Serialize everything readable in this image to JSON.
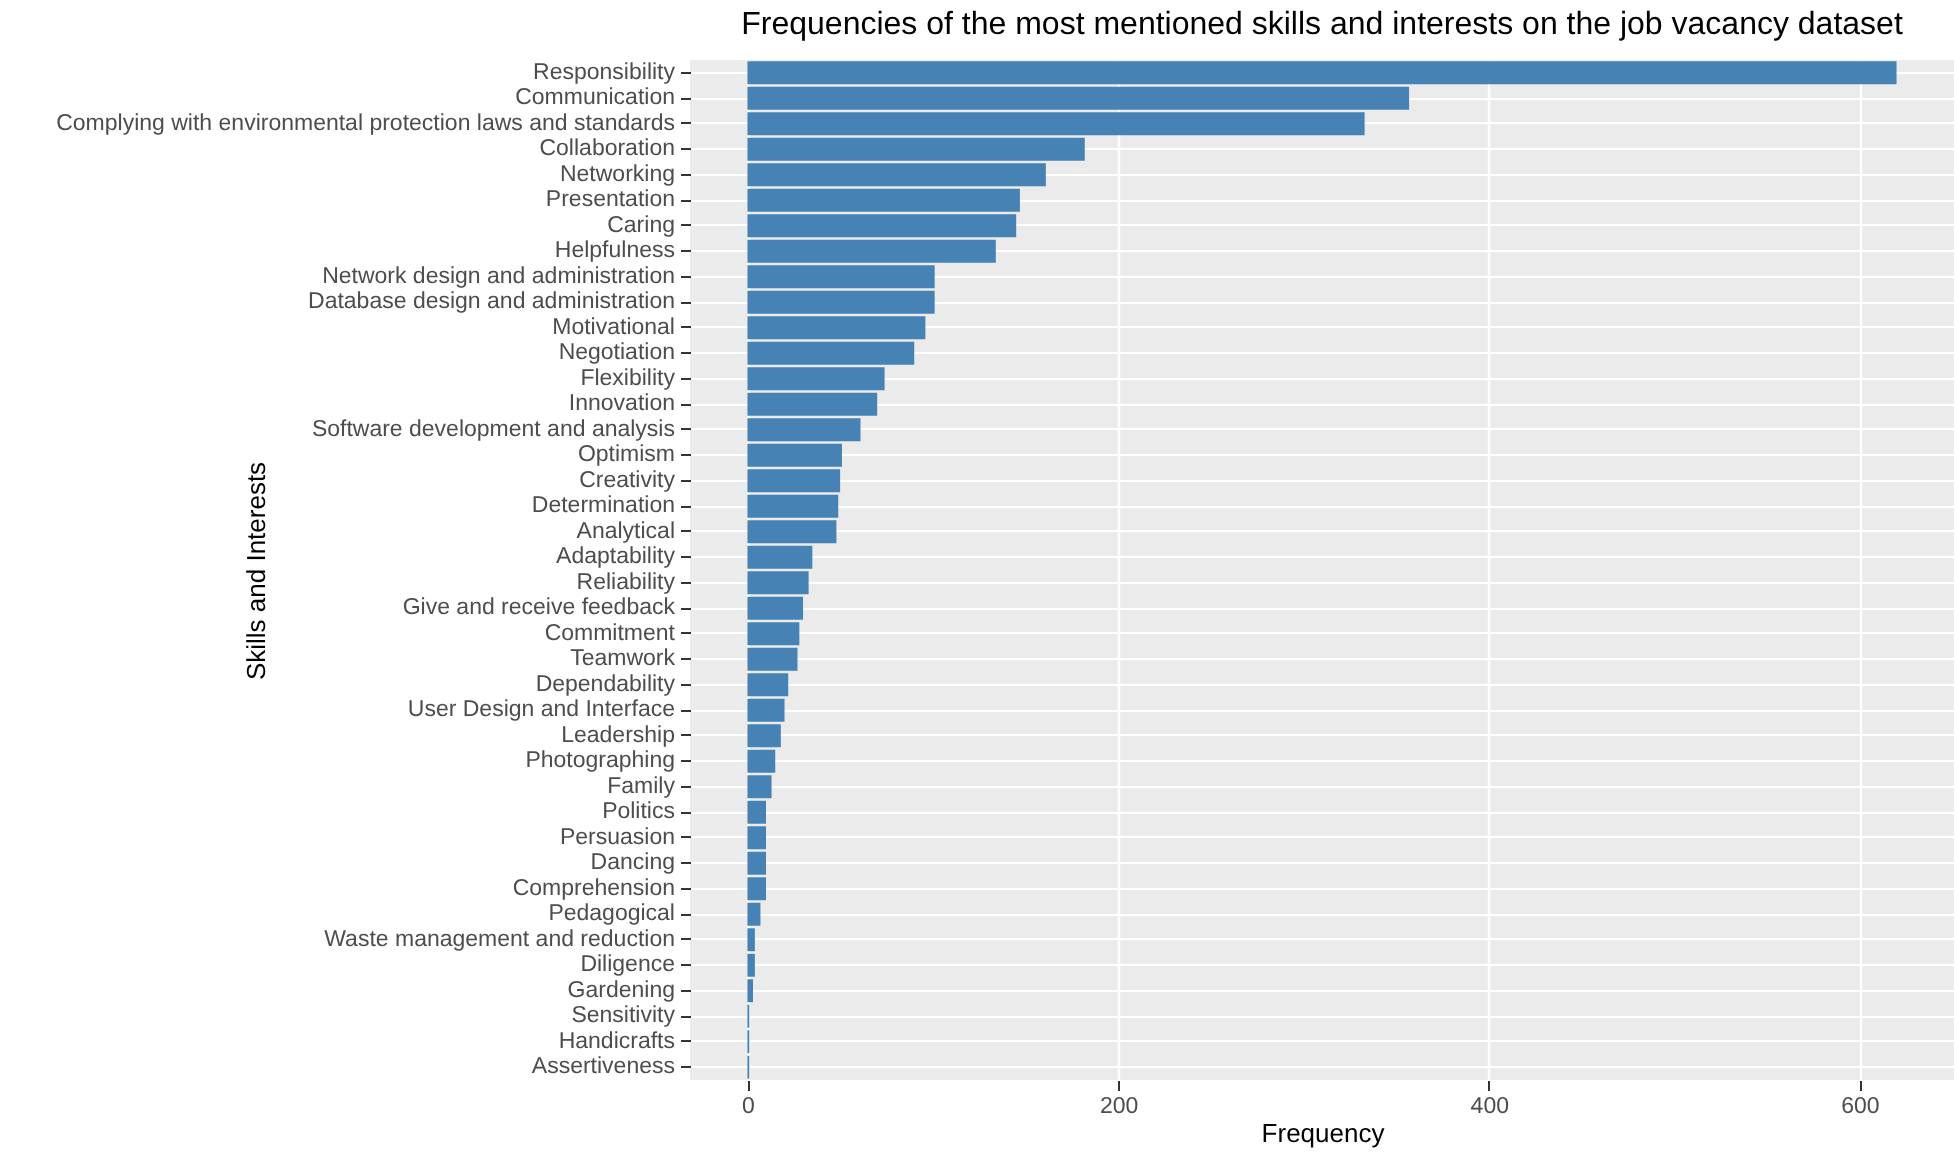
{
  "chart_data": {
    "type": "bar",
    "orientation": "horizontal",
    "title": "Frequencies of the most mentioned skills and interests on the job vacancy dataset",
    "xlabel": "Frequency",
    "ylabel": "Skills and Interests",
    "categories": [
      "Responsibility",
      "Communication",
      "Complying with environmental protection laws and standards",
      "Collaboration",
      "Networking",
      "Presentation",
      "Caring",
      "Helpfulness",
      "Network design and administration",
      "Database  design and administration",
      "Motivational",
      "Negotiation",
      "Flexibility",
      "Innovation",
      "Software development and analysis",
      "Optimism",
      "Creativity",
      "Determination",
      "Analytical",
      "Adaptability",
      "Reliability",
      "Give and receive feedback",
      "Commitment",
      "Teamwork",
      "Dependability",
      "User Design and Interface",
      "Leadership",
      "Photographing",
      "Family",
      "Politics",
      "Persuasion",
      "Dancing",
      "Comprehension",
      "Pedagogical",
      "Waste management and reduction",
      "Diligence",
      "Gardening",
      "Sensitivity",
      "Handicrafts",
      "Assertiveness"
    ],
    "values": [
      620,
      357,
      333,
      182,
      161,
      147,
      145,
      134,
      101,
      101,
      96,
      90,
      74,
      70,
      61,
      51,
      50,
      49,
      48,
      35,
      33,
      30,
      28,
      27,
      22,
      20,
      18,
      15,
      13,
      10,
      10,
      10,
      10,
      7,
      4,
      4,
      3,
      1,
      1,
      1
    ],
    "color": "#4682b4",
    "xlim": [
      -31,
      651
    ],
    "xticks": [
      0,
      200,
      400,
      600
    ],
    "grid": true
  }
}
